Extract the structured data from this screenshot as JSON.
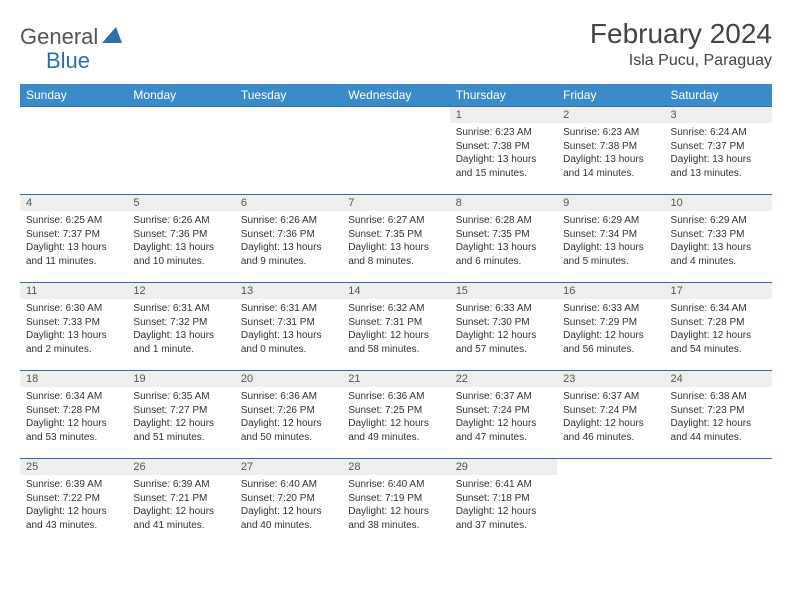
{
  "logo": {
    "general": "General",
    "blue": "Blue"
  },
  "title": "February 2024",
  "location": "Isla Pucu, Paraguay",
  "colors": {
    "header_bg": "#3b8bc9",
    "header_text": "#ffffff",
    "rule": "#2f6fa8",
    "daynum_bg": "#eeeeee",
    "text": "#333333",
    "logo_blue": "#2f6fa8",
    "logo_gray": "#555555"
  },
  "day_headers": [
    "Sunday",
    "Monday",
    "Tuesday",
    "Wednesday",
    "Thursday",
    "Friday",
    "Saturday"
  ],
  "weeks": [
    [
      {
        "n": "",
        "sunrise": "",
        "sunset": "",
        "daylight": ""
      },
      {
        "n": "",
        "sunrise": "",
        "sunset": "",
        "daylight": ""
      },
      {
        "n": "",
        "sunrise": "",
        "sunset": "",
        "daylight": ""
      },
      {
        "n": "",
        "sunrise": "",
        "sunset": "",
        "daylight": ""
      },
      {
        "n": "1",
        "sunrise": "Sunrise: 6:23 AM",
        "sunset": "Sunset: 7:38 PM",
        "daylight": "Daylight: 13 hours and 15 minutes."
      },
      {
        "n": "2",
        "sunrise": "Sunrise: 6:23 AM",
        "sunset": "Sunset: 7:38 PM",
        "daylight": "Daylight: 13 hours and 14 minutes."
      },
      {
        "n": "3",
        "sunrise": "Sunrise: 6:24 AM",
        "sunset": "Sunset: 7:37 PM",
        "daylight": "Daylight: 13 hours and 13 minutes."
      }
    ],
    [
      {
        "n": "4",
        "sunrise": "Sunrise: 6:25 AM",
        "sunset": "Sunset: 7:37 PM",
        "daylight": "Daylight: 13 hours and 11 minutes."
      },
      {
        "n": "5",
        "sunrise": "Sunrise: 6:26 AM",
        "sunset": "Sunset: 7:36 PM",
        "daylight": "Daylight: 13 hours and 10 minutes."
      },
      {
        "n": "6",
        "sunrise": "Sunrise: 6:26 AM",
        "sunset": "Sunset: 7:36 PM",
        "daylight": "Daylight: 13 hours and 9 minutes."
      },
      {
        "n": "7",
        "sunrise": "Sunrise: 6:27 AM",
        "sunset": "Sunset: 7:35 PM",
        "daylight": "Daylight: 13 hours and 8 minutes."
      },
      {
        "n": "8",
        "sunrise": "Sunrise: 6:28 AM",
        "sunset": "Sunset: 7:35 PM",
        "daylight": "Daylight: 13 hours and 6 minutes."
      },
      {
        "n": "9",
        "sunrise": "Sunrise: 6:29 AM",
        "sunset": "Sunset: 7:34 PM",
        "daylight": "Daylight: 13 hours and 5 minutes."
      },
      {
        "n": "10",
        "sunrise": "Sunrise: 6:29 AM",
        "sunset": "Sunset: 7:33 PM",
        "daylight": "Daylight: 13 hours and 4 minutes."
      }
    ],
    [
      {
        "n": "11",
        "sunrise": "Sunrise: 6:30 AM",
        "sunset": "Sunset: 7:33 PM",
        "daylight": "Daylight: 13 hours and 2 minutes."
      },
      {
        "n": "12",
        "sunrise": "Sunrise: 6:31 AM",
        "sunset": "Sunset: 7:32 PM",
        "daylight": "Daylight: 13 hours and 1 minute."
      },
      {
        "n": "13",
        "sunrise": "Sunrise: 6:31 AM",
        "sunset": "Sunset: 7:31 PM",
        "daylight": "Daylight: 13 hours and 0 minutes."
      },
      {
        "n": "14",
        "sunrise": "Sunrise: 6:32 AM",
        "sunset": "Sunset: 7:31 PM",
        "daylight": "Daylight: 12 hours and 58 minutes."
      },
      {
        "n": "15",
        "sunrise": "Sunrise: 6:33 AM",
        "sunset": "Sunset: 7:30 PM",
        "daylight": "Daylight: 12 hours and 57 minutes."
      },
      {
        "n": "16",
        "sunrise": "Sunrise: 6:33 AM",
        "sunset": "Sunset: 7:29 PM",
        "daylight": "Daylight: 12 hours and 56 minutes."
      },
      {
        "n": "17",
        "sunrise": "Sunrise: 6:34 AM",
        "sunset": "Sunset: 7:28 PM",
        "daylight": "Daylight: 12 hours and 54 minutes."
      }
    ],
    [
      {
        "n": "18",
        "sunrise": "Sunrise: 6:34 AM",
        "sunset": "Sunset: 7:28 PM",
        "daylight": "Daylight: 12 hours and 53 minutes."
      },
      {
        "n": "19",
        "sunrise": "Sunrise: 6:35 AM",
        "sunset": "Sunset: 7:27 PM",
        "daylight": "Daylight: 12 hours and 51 minutes."
      },
      {
        "n": "20",
        "sunrise": "Sunrise: 6:36 AM",
        "sunset": "Sunset: 7:26 PM",
        "daylight": "Daylight: 12 hours and 50 minutes."
      },
      {
        "n": "21",
        "sunrise": "Sunrise: 6:36 AM",
        "sunset": "Sunset: 7:25 PM",
        "daylight": "Daylight: 12 hours and 49 minutes."
      },
      {
        "n": "22",
        "sunrise": "Sunrise: 6:37 AM",
        "sunset": "Sunset: 7:24 PM",
        "daylight": "Daylight: 12 hours and 47 minutes."
      },
      {
        "n": "23",
        "sunrise": "Sunrise: 6:37 AM",
        "sunset": "Sunset: 7:24 PM",
        "daylight": "Daylight: 12 hours and 46 minutes."
      },
      {
        "n": "24",
        "sunrise": "Sunrise: 6:38 AM",
        "sunset": "Sunset: 7:23 PM",
        "daylight": "Daylight: 12 hours and 44 minutes."
      }
    ],
    [
      {
        "n": "25",
        "sunrise": "Sunrise: 6:39 AM",
        "sunset": "Sunset: 7:22 PM",
        "daylight": "Daylight: 12 hours and 43 minutes."
      },
      {
        "n": "26",
        "sunrise": "Sunrise: 6:39 AM",
        "sunset": "Sunset: 7:21 PM",
        "daylight": "Daylight: 12 hours and 41 minutes."
      },
      {
        "n": "27",
        "sunrise": "Sunrise: 6:40 AM",
        "sunset": "Sunset: 7:20 PM",
        "daylight": "Daylight: 12 hours and 40 minutes."
      },
      {
        "n": "28",
        "sunrise": "Sunrise: 6:40 AM",
        "sunset": "Sunset: 7:19 PM",
        "daylight": "Daylight: 12 hours and 38 minutes."
      },
      {
        "n": "29",
        "sunrise": "Sunrise: 6:41 AM",
        "sunset": "Sunset: 7:18 PM",
        "daylight": "Daylight: 12 hours and 37 minutes."
      },
      {
        "n": "",
        "sunrise": "",
        "sunset": "",
        "daylight": ""
      },
      {
        "n": "",
        "sunrise": "",
        "sunset": "",
        "daylight": ""
      }
    ]
  ]
}
